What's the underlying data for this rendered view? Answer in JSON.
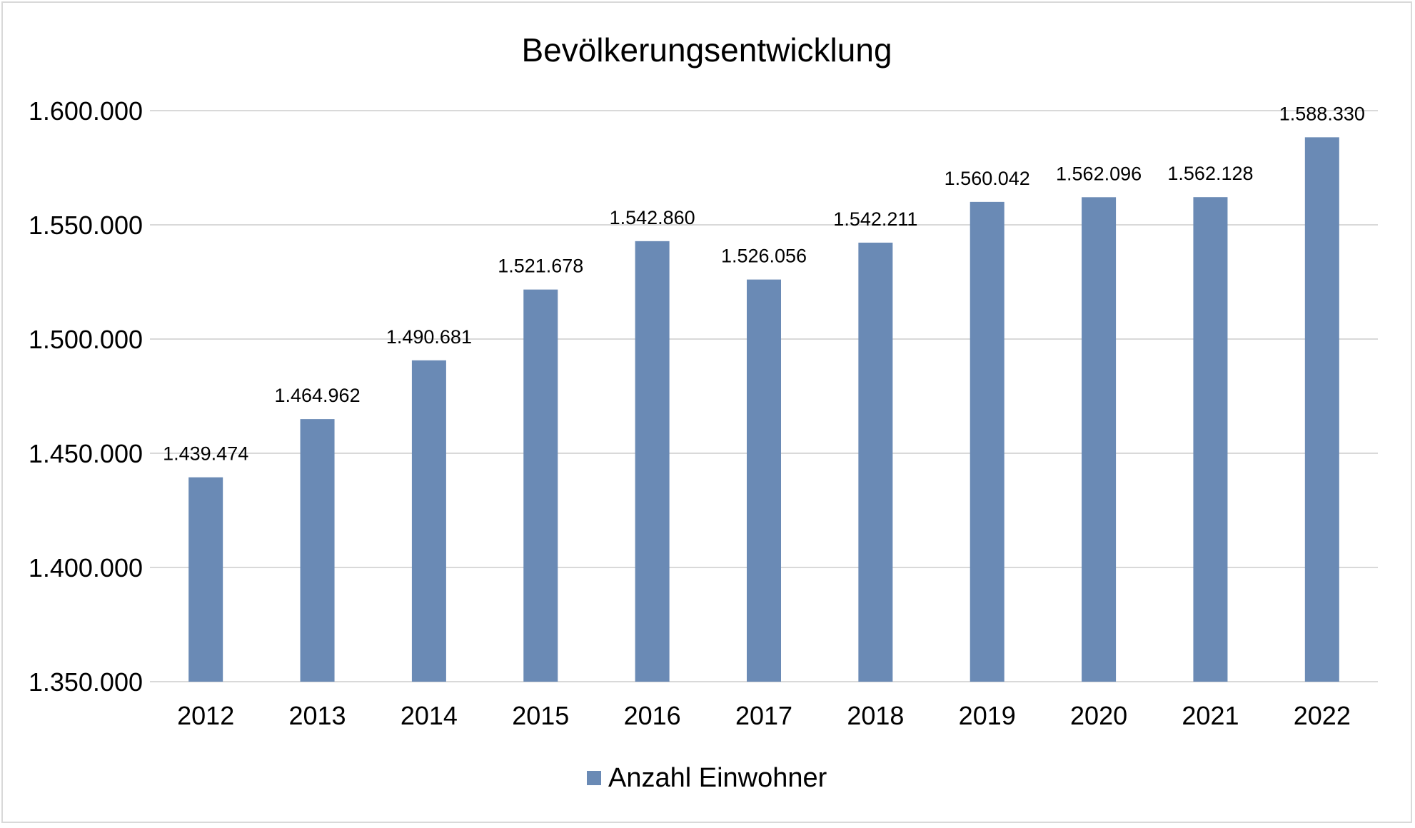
{
  "chart_data": {
    "type": "bar",
    "title": "Bevölkerungsentwicklung",
    "categories": [
      "2012",
      "2013",
      "2014",
      "2015",
      "2016",
      "2017",
      "2018",
      "2019",
      "2020",
      "2021",
      "2022"
    ],
    "series": [
      {
        "name": "Anzahl Einwohner",
        "color": "#6a8ab5",
        "values": [
          1439474,
          1464962,
          1490681,
          1521678,
          1542860,
          1526056,
          1542211,
          1560042,
          1562096,
          1562128,
          1588330
        ],
        "labels": [
          "1.439.474",
          "1.464.962",
          "1.490.681",
          "1.521.678",
          "1.542.860",
          "1.526.056",
          "1.542.211",
          "1.560.042",
          "1.562.096",
          "1.562.128",
          "1.588.330"
        ]
      }
    ],
    "ylim": [
      1350000,
      1600000
    ],
    "yticks": [
      1350000,
      1400000,
      1450000,
      1500000,
      1550000,
      1600000
    ],
    "ytick_labels": [
      "1.350.000",
      "1.400.000",
      "1.450.000",
      "1.500.000",
      "1.550.000",
      "1.600.000"
    ],
    "grid": true,
    "legend_position": "bottom",
    "gridline_color": "#d9d9d9",
    "text_color": "#000000"
  }
}
